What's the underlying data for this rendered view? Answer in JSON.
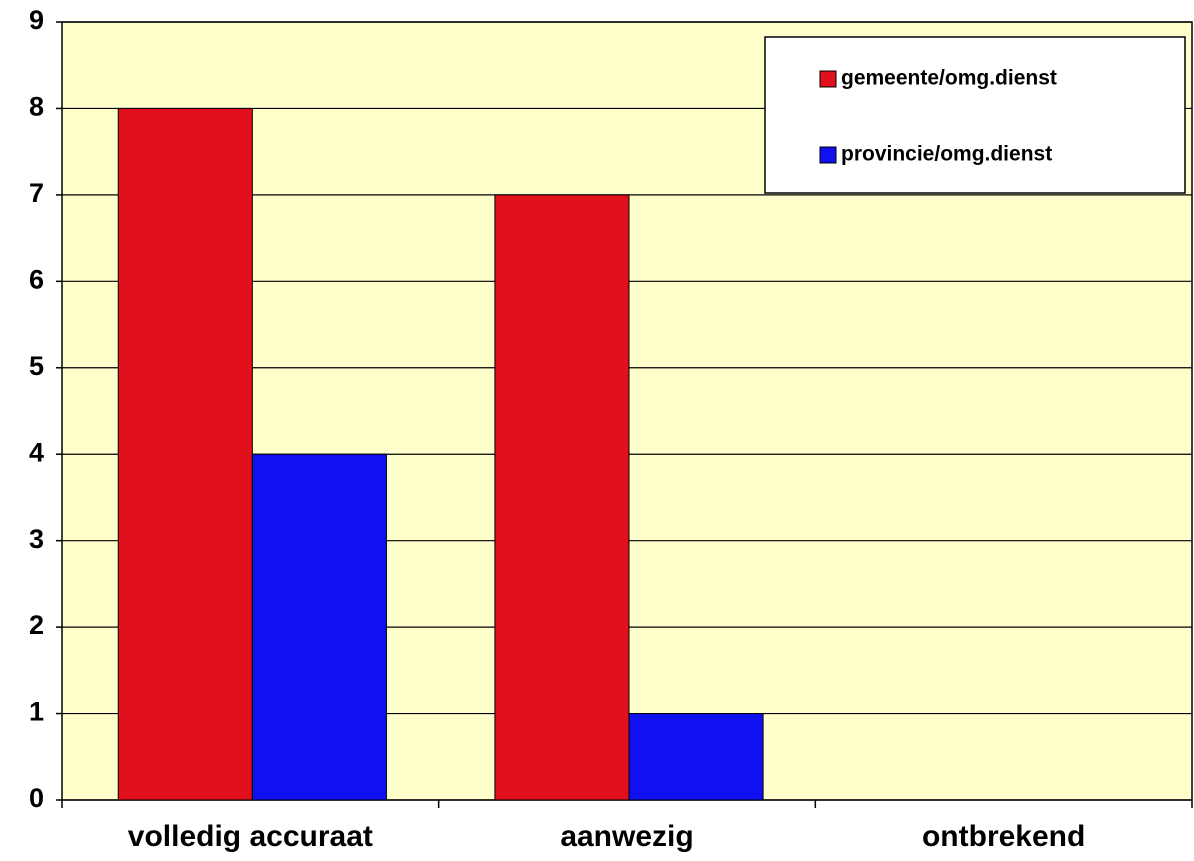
{
  "chart_data": {
    "type": "bar",
    "categories": [
      "volledig accuraat",
      "aanwezig",
      "ontbrekend"
    ],
    "series": [
      {
        "name": "gemeente/omg.dienst",
        "color": "#e20f1c",
        "values": [
          8,
          7,
          0
        ]
      },
      {
        "name": "provincie/omg.dienst",
        "color": "#1010f0",
        "values": [
          4,
          1,
          0
        ]
      }
    ],
    "ylim": [
      0,
      9
    ],
    "yticks": [
      0,
      1,
      2,
      3,
      4,
      5,
      6,
      7,
      8,
      9
    ],
    "grid": true,
    "legend": "top-right",
    "background": "#ffffcc"
  }
}
